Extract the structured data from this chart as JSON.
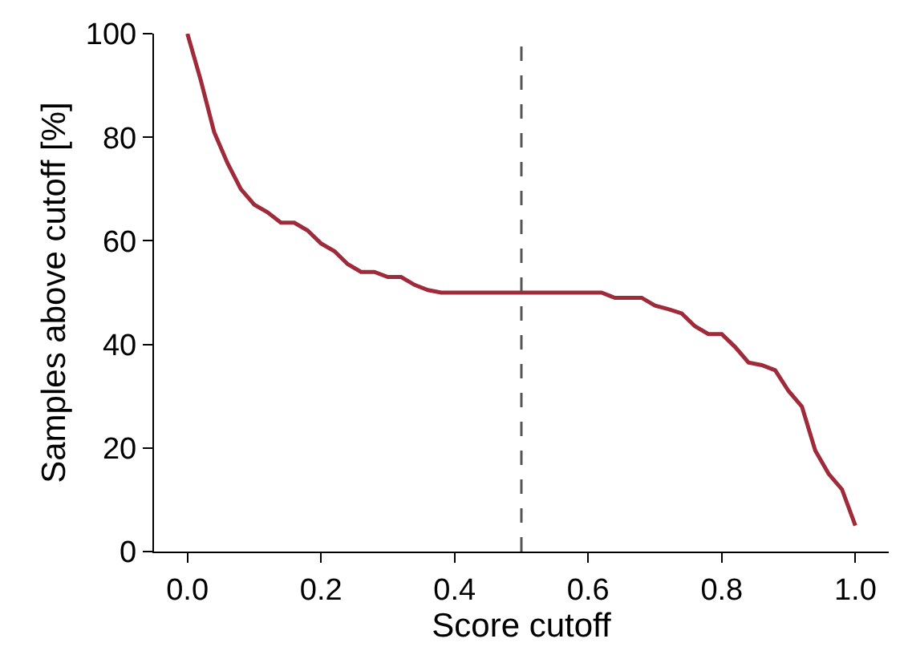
{
  "chart_data": {
    "type": "line",
    "xlabel": "Score cutoff",
    "ylabel": "Samples above cutoff [%]",
    "x": [
      0,
      0.02,
      0.04,
      0.06,
      0.08,
      0.1,
      0.12,
      0.14,
      0.16,
      0.18,
      0.2,
      0.22,
      0.24,
      0.26,
      0.28,
      0.3,
      0.32,
      0.34,
      0.36,
      0.38,
      0.4,
      0.42,
      0.44,
      0.46,
      0.48,
      0.5,
      0.52,
      0.54,
      0.56,
      0.58,
      0.6,
      0.62,
      0.64,
      0.66,
      0.68,
      0.7,
      0.72,
      0.74,
      0.76,
      0.78,
      0.8,
      0.82,
      0.84,
      0.86,
      0.88,
      0.9,
      0.92,
      0.94,
      0.96,
      0.98,
      1.0
    ],
    "series": [
      {
        "color": "#9e2a3a",
        "values": [
          100,
          91,
          81,
          75,
          70,
          67,
          65.5,
          63.5,
          63.5,
          62,
          59.5,
          58,
          55.5,
          54,
          54,
          53,
          53,
          51.5,
          50.5,
          50,
          50,
          50,
          50,
          50,
          50,
          50,
          50,
          50,
          50,
          50,
          50,
          50,
          49,
          49,
          49,
          47.5,
          46.8,
          46,
          43.5,
          42,
          42,
          39.5,
          36.5,
          36,
          35,
          31,
          28,
          19.5,
          15,
          12,
          5
        ]
      }
    ],
    "xlim": [
      -0.05,
      1.05
    ],
    "ylim": [
      0,
      100
    ],
    "xticks": [
      {
        "value": 0,
        "label": "0.0"
      },
      {
        "value": 0.2,
        "label": "0.2"
      },
      {
        "value": 0.4,
        "label": "0.4"
      },
      {
        "value": 0.6,
        "label": "0.6"
      },
      {
        "value": 0.8,
        "label": "0.8"
      },
      {
        "value": 1,
        "label": "1.0"
      }
    ],
    "yticks": [
      0,
      20,
      40,
      60,
      80,
      100
    ],
    "ref_lines": [
      {
        "axis": "x",
        "value": 0.5,
        "color": "#555555",
        "line_style": "dashed"
      }
    ],
    "marker": "none",
    "line_style": "solid"
  }
}
